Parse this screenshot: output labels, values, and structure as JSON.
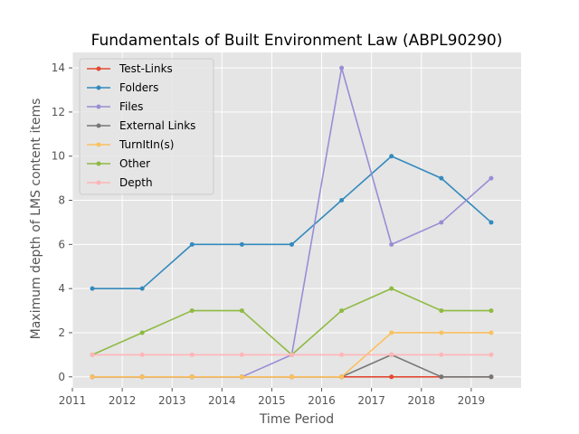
{
  "chart_data": {
    "type": "line",
    "title": "Fundamentals of Built Environment Law (ABPL90290)",
    "xlabel": "Time Period",
    "ylabel": "Maximum depth of LMS content items",
    "xlim": [
      2011.0,
      2020.0
    ],
    "ylim": [
      -0.5,
      14.7
    ],
    "xticks": [
      2011,
      2012,
      2013,
      2014,
      2015,
      2016,
      2017,
      2018,
      2019
    ],
    "yticks": [
      0,
      2,
      4,
      6,
      8,
      10,
      12,
      14
    ],
    "grid": true,
    "legend_position": "top-left",
    "x": [
      2011.4,
      2012.4,
      2013.4,
      2014.4,
      2015.4,
      2016.4,
      2017.4,
      2018.4,
      2019.4
    ],
    "series": [
      {
        "name": "Test-Links",
        "color": "#e24a33",
        "values": [
          0,
          0,
          0,
          0,
          0,
          0,
          0,
          0,
          0
        ]
      },
      {
        "name": "Folders",
        "color": "#348abd",
        "values": [
          4,
          4,
          6,
          6,
          6,
          8,
          10,
          9,
          7
        ]
      },
      {
        "name": "Files",
        "color": "#988ed5",
        "values": [
          0,
          0,
          0,
          0,
          1,
          14,
          6,
          7,
          9
        ]
      },
      {
        "name": "External Links",
        "color": "#777777",
        "values": [
          0,
          0,
          0,
          0,
          0,
          0,
          1,
          0,
          0
        ]
      },
      {
        "name": "TurnItIn(s)",
        "color": "#fbc15e",
        "values": [
          0,
          0,
          0,
          0,
          0,
          0,
          2,
          2,
          2
        ]
      },
      {
        "name": "Other",
        "color": "#8eba42",
        "values": [
          1,
          2,
          3,
          3,
          1,
          3,
          4,
          3,
          3
        ]
      },
      {
        "name": "Depth",
        "color": "#ffb5b8",
        "values": [
          1,
          1,
          1,
          1,
          1,
          1,
          1,
          1,
          1
        ]
      }
    ]
  }
}
